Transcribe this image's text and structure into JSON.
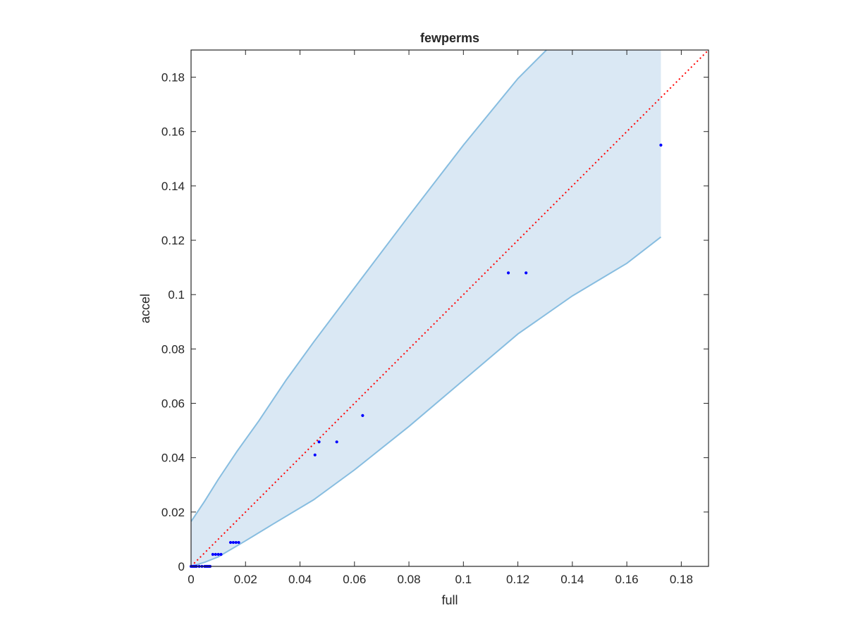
{
  "chart_data": {
    "type": "scatter",
    "title": "fewperms",
    "xlabel": "full",
    "ylabel": "accel",
    "xlim": [
      0,
      0.19
    ],
    "ylim": [
      0,
      0.19
    ],
    "xticks": [
      0,
      0.02,
      0.04,
      0.06,
      0.08,
      0.1,
      0.12,
      0.14,
      0.16,
      0.18
    ],
    "yticks": [
      0,
      0.02,
      0.04,
      0.06,
      0.08,
      0.1,
      0.12,
      0.14,
      0.16,
      0.18
    ],
    "xtick_labels": [
      "0",
      "0.02",
      "0.04",
      "0.06",
      "0.08",
      "0.1",
      "0.12",
      "0.14",
      "0.16",
      "0.18"
    ],
    "ytick_labels": [
      "0",
      "0.02",
      "0.04",
      "0.06",
      "0.08",
      "0.1",
      "0.12",
      "0.14",
      "0.16",
      "0.18"
    ],
    "grid": false,
    "series": [
      {
        "type": "scatter",
        "color": "#0000ff",
        "points": [
          [
            0.0,
            0.0
          ],
          [
            0.0005,
            0.0
          ],
          [
            0.001,
            0.0
          ],
          [
            0.0015,
            0.0
          ],
          [
            0.002,
            0.0
          ],
          [
            0.003,
            0.0
          ],
          [
            0.004,
            0.0
          ],
          [
            0.005,
            0.0
          ],
          [
            0.0055,
            0.0
          ],
          [
            0.006,
            0.0
          ],
          [
            0.0065,
            0.0
          ],
          [
            0.007,
            0.0
          ],
          [
            0.008,
            0.0044
          ],
          [
            0.009,
            0.0044
          ],
          [
            0.01,
            0.0044
          ],
          [
            0.011,
            0.0044
          ],
          [
            0.0145,
            0.0088
          ],
          [
            0.0155,
            0.0088
          ],
          [
            0.0165,
            0.0088
          ],
          [
            0.0175,
            0.0088
          ],
          [
            0.0455,
            0.041
          ],
          [
            0.047,
            0.0458
          ],
          [
            0.0535,
            0.0458
          ],
          [
            0.063,
            0.0555
          ],
          [
            0.1165,
            0.108
          ],
          [
            0.123,
            0.108
          ],
          [
            0.1725,
            0.155
          ]
        ]
      },
      {
        "type": "band",
        "fill": "#dae8f4",
        "edge": "#87bde0",
        "upper": [
          [
            0.0,
            0.0165
          ],
          [
            0.002,
            0.0195
          ],
          [
            0.005,
            0.024
          ],
          [
            0.01,
            0.032
          ],
          [
            0.017,
            0.0425
          ],
          [
            0.025,
            0.0537
          ],
          [
            0.035,
            0.0687
          ],
          [
            0.045,
            0.0825
          ],
          [
            0.06,
            0.1025
          ],
          [
            0.08,
            0.129
          ],
          [
            0.1,
            0.155
          ],
          [
            0.12,
            0.1795
          ],
          [
            0.1305,
            0.19
          ]
        ],
        "upper_cap": [
          [
            0.1725,
            0.19
          ]
        ],
        "lower": [
          [
            0.0,
            0.0
          ],
          [
            0.005,
            0.0015
          ],
          [
            0.01,
            0.0035
          ],
          [
            0.02,
            0.0094
          ],
          [
            0.03,
            0.0155
          ],
          [
            0.045,
            0.0245
          ],
          [
            0.06,
            0.0355
          ],
          [
            0.08,
            0.0515
          ],
          [
            0.1,
            0.0685
          ],
          [
            0.12,
            0.0855
          ],
          [
            0.14,
            0.0995
          ],
          [
            0.16,
            0.1115
          ],
          [
            0.1725,
            0.1212
          ]
        ]
      },
      {
        "type": "line",
        "style": "dotted",
        "color": "#ff0000",
        "points": [
          [
            0,
            0
          ],
          [
            0.19,
            0.19
          ]
        ]
      }
    ]
  }
}
